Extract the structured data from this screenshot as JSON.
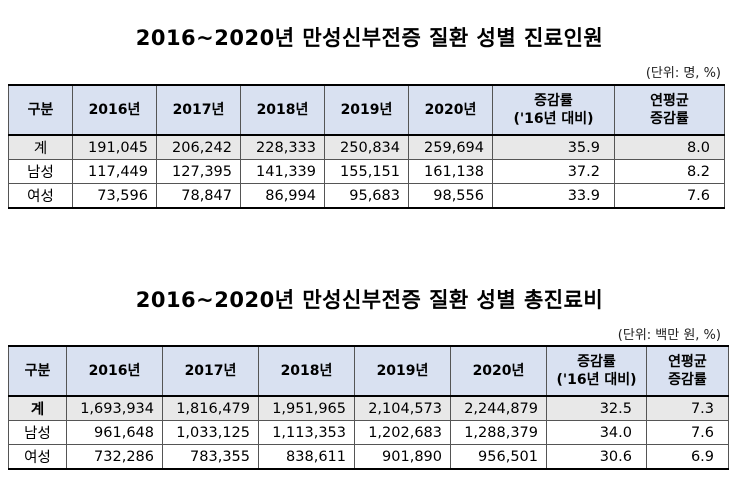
{
  "table1": {
    "title": "2016~2020년  만성신부전증  질환  성별  진료인원",
    "unit": "(단위: 명, %)",
    "headers": {
      "category": "구분",
      "y2016": "2016년",
      "y2017": "2017년",
      "y2018": "2018년",
      "y2019": "2019년",
      "y2020": "2020년",
      "growth_line1": "증감률",
      "growth_line2": "('16년 대비)",
      "annual_line1": "연평균",
      "annual_line2": "증감률"
    },
    "rows": [
      {
        "label": "계",
        "values": [
          "191,045",
          "206,242",
          "228,333",
          "250,834",
          "259,694"
        ],
        "growth": "35.9",
        "annual": "8.0"
      },
      {
        "label": "남성",
        "values": [
          "117,449",
          "127,395",
          "141,339",
          "155,151",
          "161,138"
        ],
        "growth": "37.2",
        "annual": "8.2"
      },
      {
        "label": "여성",
        "values": [
          "73,596",
          "78,847",
          "86,994",
          "95,683",
          "98,556"
        ],
        "growth": "33.9",
        "annual": "7.6"
      }
    ]
  },
  "table2": {
    "title": "2016~2020년  만성신부전증  질환  성별  총진료비",
    "unit": "(단위: 백만 원, %)",
    "headers": {
      "category": "구분",
      "y2016": "2016년",
      "y2017": "2017년",
      "y2018": "2018년",
      "y2019": "2019년",
      "y2020": "2020년",
      "growth_line1": "증감률",
      "growth_line2": "('16년 대비)",
      "annual_line1": "연평균",
      "annual_line2": "증감률"
    },
    "rows": [
      {
        "label": "계",
        "values": [
          "1,693,934",
          "1,816,479",
          "1,951,965",
          "2,104,573",
          "2,244,879"
        ],
        "growth": "32.5",
        "annual": "7.3"
      },
      {
        "label": "남성",
        "values": [
          "961,648",
          "1,033,125",
          "1,113,353",
          "1,202,683",
          "1,288,379"
        ],
        "growth": "34.0",
        "annual": "7.6"
      },
      {
        "label": "여성",
        "values": [
          "732,286",
          "783,355",
          "838,611",
          "901,890",
          "956,501"
        ],
        "growth": "30.6",
        "annual": "6.9"
      }
    ]
  }
}
